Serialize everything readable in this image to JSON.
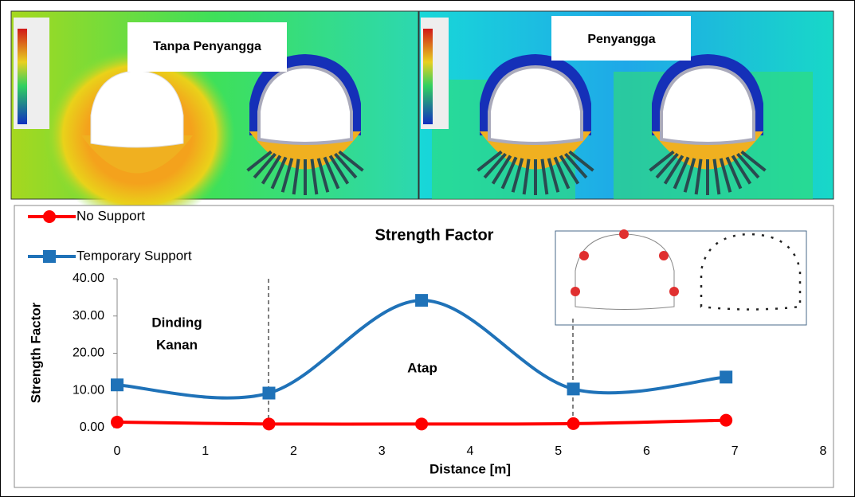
{
  "images": [
    {
      "label": "Tanpa Penyangga"
    },
    {
      "label": "Penyangga"
    }
  ],
  "chart_data": {
    "type": "line",
    "title": "Strength Factor",
    "x_label": "Distance [m]",
    "y_label": "Strength Factor",
    "x": [
      0,
      1.72,
      3.45,
      5.17,
      6.9
    ],
    "series": [
      {
        "name": "No Support",
        "color": "#ff0000",
        "marker": "circle",
        "values": [
          1.5,
          1.0,
          1.0,
          1.1,
          2.0
        ]
      },
      {
        "name": "Temporary Support",
        "color": "#1f72b8",
        "marker": "square",
        "values": [
          11.5,
          9.3,
          34.2,
          10.4,
          13.6
        ]
      }
    ],
    "xlim": [
      0,
      8
    ],
    "xticks": [
      0,
      1,
      2,
      3,
      4,
      5,
      6,
      7,
      8
    ],
    "ylim": [
      0,
      40
    ],
    "yticks": [
      {
        "value": 0,
        "label": "0.00"
      },
      {
        "value": 10,
        "label": "10.00"
      },
      {
        "value": 20,
        "label": "20.00"
      },
      {
        "value": 30,
        "label": "30.00"
      },
      {
        "value": 40,
        "label": "40.00"
      }
    ],
    "smooth": true,
    "grid": false,
    "legend": "top-left",
    "annotations": [
      {
        "lines": [
          "Dinding",
          "Kanan"
        ]
      },
      {
        "lines": [
          "Atap"
        ]
      }
    ]
  }
}
